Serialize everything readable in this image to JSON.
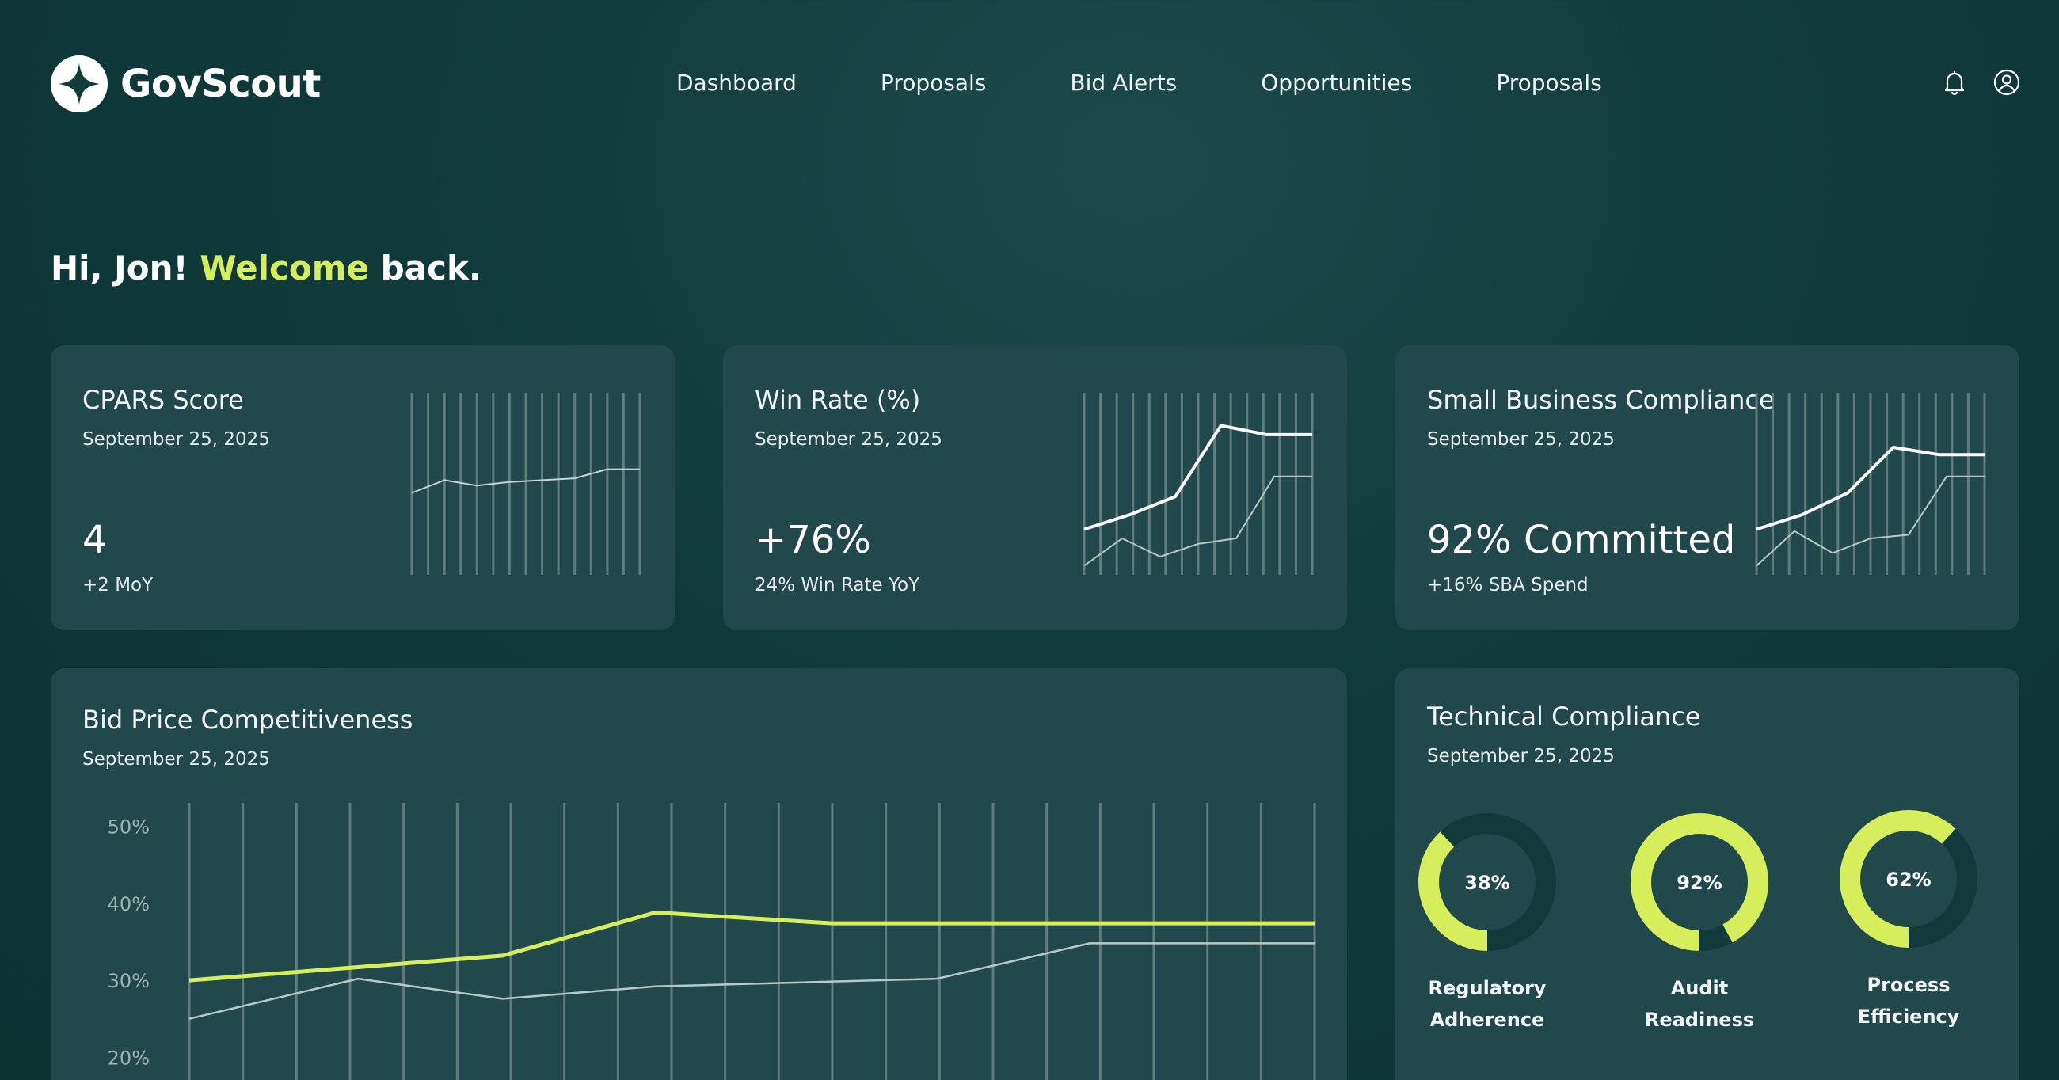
{
  "app": {
    "name": "GovScout"
  },
  "nav": {
    "items": [
      {
        "label": "Dashboard"
      },
      {
        "label": "Proposals"
      },
      {
        "label": "Bid Alerts"
      },
      {
        "label": "Opportunities"
      },
      {
        "label": "Proposals"
      }
    ]
  },
  "header": {
    "icons": [
      "bell-icon",
      "user-circle-icon"
    ]
  },
  "greeting": {
    "prefix": "Hi, Jon! ",
    "accent": "Welcome",
    "suffix": " back."
  },
  "colors": {
    "accent": "#d6ee5c",
    "card": "#21494b",
    "background": "#103a3a"
  },
  "cards": {
    "cpars": {
      "title": "CPARS Score",
      "date": "September 25, 2025",
      "value": "4",
      "sub": "+2 MoY",
      "spark": {
        "primary": [
          45,
          52,
          49,
          51,
          52,
          53,
          58,
          58
        ],
        "secondary": []
      }
    },
    "winrate": {
      "title": "Win Rate (%)",
      "date": "September 25, 2025",
      "value": "+76%",
      "sub": "24%  Win Rate YoY",
      "spark": {
        "primary": [
          25,
          33,
          43,
          82,
          77,
          77
        ],
        "secondary": [
          5,
          20,
          10,
          17,
          20,
          54,
          54
        ]
      }
    },
    "sbc": {
      "title": "Small Business Compliance",
      "date": "September 25, 2025",
      "value": "92% Committed",
      "sub": "+16% SBA Spend",
      "spark": {
        "primary": [
          25,
          33,
          45,
          70,
          66,
          66
        ],
        "secondary": [
          5,
          24,
          12,
          20,
          22,
          54,
          54
        ]
      }
    }
  },
  "bid": {
    "title": "Bid Price Competitiveness",
    "date": "September 25, 2025"
  },
  "chart_data": {
    "type": "line",
    "title": "Bid Price Competitiveness",
    "y_tick_labels": [
      "50%",
      "40%",
      "30%",
      "20%"
    ],
    "ylim": [
      15,
      52
    ],
    "grid": "vertical",
    "series": [
      {
        "x": [
          0,
          2.1,
          3.9,
          5.8,
          8.0,
          11.2,
          14.0
        ],
        "values": [
          30,
          31.7,
          33.2,
          38.8,
          37.4,
          37.4,
          37.4
        ],
        "color": "#d6ee5c"
      },
      {
        "x": [
          0,
          2.1,
          3.9,
          5.8,
          9.3,
          11.2,
          14.0
        ],
        "values": [
          25,
          30.2,
          27.6,
          29.2,
          30.2,
          34.8,
          34.8
        ],
        "color": "#b9c9c6"
      }
    ]
  },
  "tech": {
    "title": "Technical Compliance",
    "date": "September 25, 2025",
    "gauges": [
      {
        "percent": 38,
        "text": "38%",
        "label_line1": "Regulatory",
        "label_line2": "Adherence"
      },
      {
        "percent": 92,
        "text": "92%",
        "label_line1": "Audit",
        "label_line2": "Readiness"
      },
      {
        "percent": 62,
        "text": "62%",
        "label_line1": "Process",
        "label_line2": "Efficiency"
      }
    ]
  }
}
